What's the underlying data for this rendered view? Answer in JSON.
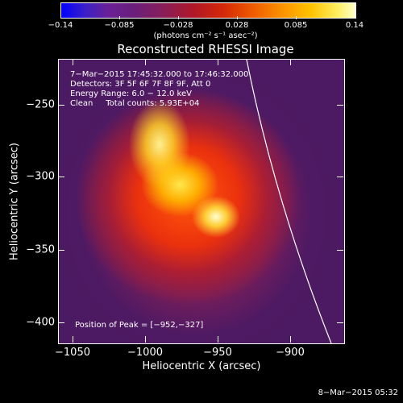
{
  "colorbar": {
    "tick_labels": [
      "−0.14",
      "−0.085",
      "−0.028",
      "0.028",
      "0.085",
      "0.14"
    ],
    "unit": "(photons cm⁻² s⁻¹ asec⁻²)",
    "colormap": [
      "#0000ff",
      "#6a2096",
      "#b01828",
      "#ee5a00",
      "#ffc400",
      "#ffffcc"
    ]
  },
  "title": "Reconstructed RHESSI Image",
  "annotations": {
    "time_range": "7−Mar−2015 17:45:32.000 to 17:46:32.000",
    "detectors": "Detectors: 3F 5F 6F 7F 8F 9F, Att 0",
    "energy": "Energy Range: 6.0 − 12.0 keV",
    "method": "Clean     Total counts: 5.93E+04",
    "peak": "Position of Peak = [−952,−327]"
  },
  "axes": {
    "xlabel": "Heliocentric X (arcsec)",
    "ylabel": "Heliocentric Y (arcsec)",
    "x_ticks": [
      "−1050",
      "−1000",
      "−950",
      "−900"
    ],
    "y_ticks": [
      "−250",
      "−300",
      "−350",
      "−400"
    ]
  },
  "footer": {
    "date": "8−Mar−2015 05:32"
  }
}
